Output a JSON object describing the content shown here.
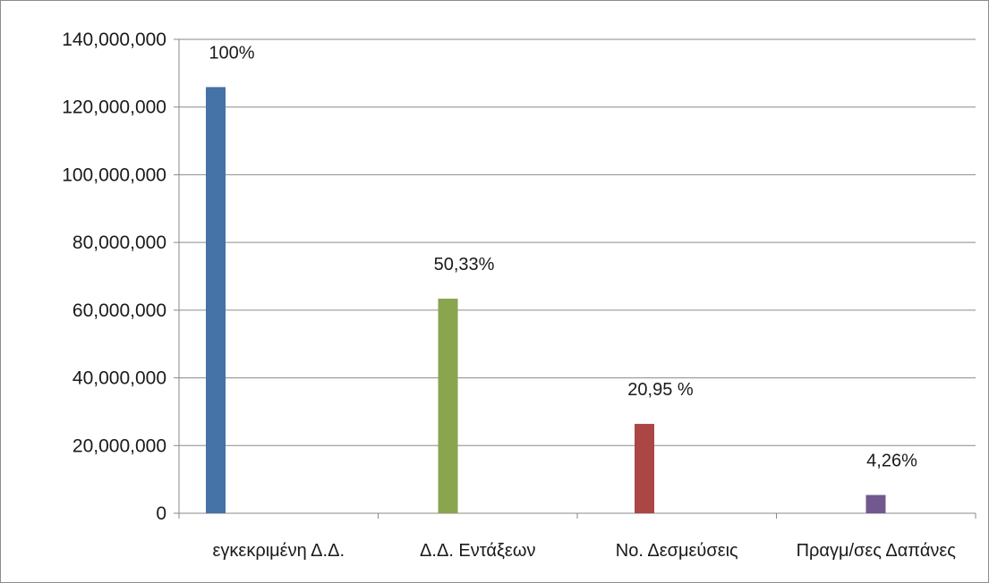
{
  "chart_data": {
    "type": "bar",
    "categories": [
      "εγκεκριμένη Δ.Δ.",
      "Δ.Δ. Εντάξεων",
      "Νο. Δεσμεύσεις",
      "Πραγμ/σες Δαπάνες"
    ],
    "values": [
      125900000,
      63400000,
      26400000,
      5400000
    ],
    "data_labels": [
      "100%",
      "50,33%",
      "20,95 %",
      "4,26%"
    ],
    "bar_colors": [
      "#4572a7",
      "#89a54e",
      "#aa4643",
      "#71588f"
    ],
    "y_ticks": [
      0,
      20000000,
      40000000,
      60000000,
      80000000,
      100000000,
      120000000,
      140000000
    ],
    "y_tick_labels": [
      "0",
      "20,000,000",
      "40,000,000",
      "60,000,000",
      "80,000,000",
      "100,000,000",
      "120,000,000",
      "140,000,000"
    ],
    "ylim": [
      0,
      140000000
    ],
    "grid": true,
    "legend": "none"
  }
}
